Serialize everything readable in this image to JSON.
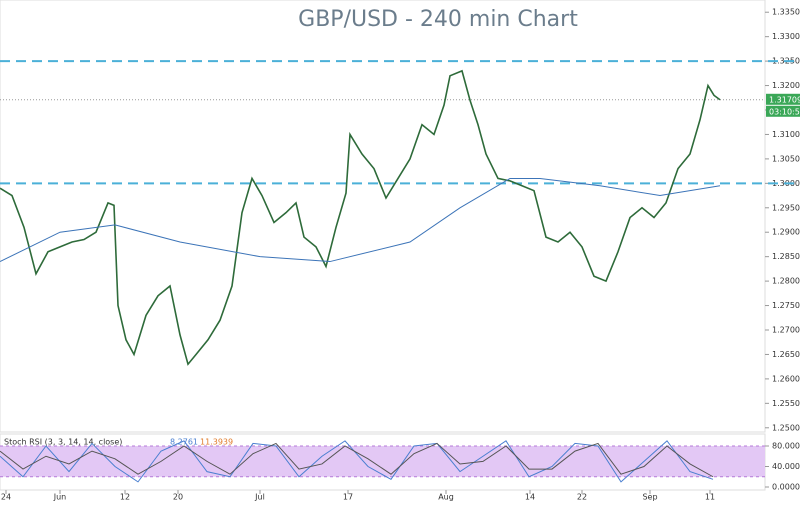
{
  "chart_data": [
    {
      "type": "line",
      "title": "GBP/USD - 240 min Chart",
      "xlim": [
        0,
        765
      ],
      "xticks": [
        {
          "value": 6,
          "label": "24"
        },
        {
          "value": 60,
          "label": "Jun"
        },
        {
          "value": 125,
          "label": "12"
        },
        {
          "value": 178,
          "label": "20"
        },
        {
          "value": 260,
          "label": "Jul"
        },
        {
          "value": 348,
          "label": "17"
        },
        {
          "value": 446,
          "label": "Aug"
        },
        {
          "value": 530,
          "label": "14"
        },
        {
          "value": 582,
          "label": "22"
        },
        {
          "value": 650,
          "label": "Sep"
        },
        {
          "value": 710,
          "label": "11"
        }
      ],
      "ylim": [
        1.2475,
        1.3375
      ],
      "yticks": [
        {
          "value": 1.335,
          "label": "1.33500"
        },
        {
          "value": 1.33,
          "label": "1.33000"
        },
        {
          "value": 1.325,
          "label": "1.32500"
        },
        {
          "value": 1.32,
          "label": "1.32000"
        },
        {
          "value": 1.315,
          "label": "1.31500"
        },
        {
          "value": 1.31,
          "label": "1.31000"
        },
        {
          "value": 1.305,
          "label": "1.30500"
        },
        {
          "value": 1.3,
          "label": "1.30000"
        },
        {
          "value": 1.295,
          "label": "1.29500"
        },
        {
          "value": 1.29,
          "label": "1.29000"
        },
        {
          "value": 1.285,
          "label": "1.28500"
        },
        {
          "value": 1.28,
          "label": "1.28000"
        },
        {
          "value": 1.275,
          "label": "1.27500"
        },
        {
          "value": 1.27,
          "label": "1.27000"
        },
        {
          "value": 1.265,
          "label": "1.26500"
        },
        {
          "value": 1.26,
          "label": "1.26000"
        },
        {
          "value": 1.255,
          "label": "1.25500"
        },
        {
          "value": 1.25,
          "label": "1.25000"
        }
      ],
      "levels": [
        1.325,
        1.3
      ],
      "last_price": 1.31709,
      "timer": "03:10:51",
      "series": [
        {
          "color": "#2e6b3a",
          "x": [
            0,
            12,
            24,
            36,
            48,
            60,
            72,
            84,
            96,
            108,
            114,
            118,
            126,
            134,
            146,
            158,
            170,
            180,
            188,
            196,
            208,
            220,
            232,
            242,
            252,
            262,
            274,
            286,
            296,
            304,
            316,
            326,
            336,
            346,
            350,
            362,
            374,
            386,
            398,
            410,
            422,
            434,
            444,
            450,
            462,
            470,
            478,
            486,
            498,
            510,
            522,
            534,
            546,
            558,
            570,
            582,
            594,
            606,
            618,
            630,
            642,
            654,
            666,
            678,
            690,
            700,
            708,
            714,
            720
          ],
          "values": [
            1.299,
            1.2975,
            1.291,
            1.2815,
            1.286,
            1.287,
            1.288,
            1.2885,
            1.29,
            1.296,
            1.2955,
            1.275,
            1.268,
            1.265,
            1.273,
            1.277,
            1.279,
            1.269,
            1.263,
            1.265,
            1.268,
            1.272,
            1.279,
            1.294,
            1.301,
            1.2975,
            1.292,
            1.294,
            1.296,
            1.289,
            1.287,
            1.283,
            1.291,
            1.298,
            1.31,
            1.306,
            1.303,
            1.297,
            1.301,
            1.305,
            1.312,
            1.31,
            1.316,
            1.322,
            1.323,
            1.317,
            1.312,
            1.306,
            1.301,
            1.3005,
            1.2995,
            1.2985,
            1.289,
            1.288,
            1.29,
            1.287,
            1.281,
            1.28,
            1.286,
            1.293,
            1.295,
            1.293,
            1.296,
            1.303,
            1.306,
            1.313,
            1.32,
            1.318,
            1.31709
          ]
        },
        {
          "color": "#3c74b8",
          "x": [
            0,
            60,
            115,
            180,
            260,
            330,
            410,
            460,
            510,
            540,
            600,
            660,
            720
          ],
          "values": [
            1.284,
            1.29,
            1.2915,
            1.288,
            1.285,
            1.284,
            1.288,
            1.295,
            1.301,
            1.301,
            1.2995,
            1.2975,
            1.2995
          ]
        }
      ]
    },
    {
      "type": "line",
      "title": "Stoch RSI (3, 3, 14, 14, close)",
      "value_texts": [
        "8.2761",
        "11.3939"
      ],
      "ylim": [
        0,
        100
      ],
      "yticks": [
        {
          "value": 0,
          "label": "0.0000"
        },
        {
          "value": 40,
          "label": "40.0000"
        },
        {
          "value": 80,
          "label": "80.0000"
        }
      ],
      "band": [
        20,
        80
      ],
      "series": [
        {
          "color": "#4a7fd0",
          "x": [
            0,
            23,
            46,
            69,
            92,
            115,
            138,
            161,
            184,
            207,
            230,
            253,
            276,
            299,
            322,
            345,
            368,
            391,
            414,
            437,
            460,
            483,
            506,
            529,
            552,
            575,
            598,
            621,
            644,
            667,
            690,
            713
          ],
          "values": [
            60,
            20,
            80,
            30,
            85,
            40,
            10,
            70,
            90,
            30,
            20,
            85,
            80,
            20,
            60,
            90,
            40,
            15,
            80,
            85,
            30,
            60,
            90,
            20,
            40,
            85,
            80,
            10,
            50,
            90,
            30,
            15
          ]
        },
        {
          "color": "#555555",
          "x": [
            0,
            23,
            46,
            69,
            92,
            115,
            138,
            161,
            184,
            207,
            230,
            253,
            276,
            299,
            322,
            345,
            368,
            391,
            414,
            437,
            460,
            483,
            506,
            529,
            552,
            575,
            598,
            621,
            644,
            667,
            690,
            713
          ],
          "values": [
            70,
            35,
            60,
            45,
            70,
            55,
            25,
            50,
            80,
            50,
            25,
            65,
            85,
            35,
            45,
            80,
            55,
            25,
            65,
            85,
            45,
            50,
            80,
            35,
            35,
            70,
            85,
            25,
            40,
            80,
            45,
            20
          ]
        }
      ]
    }
  ]
}
